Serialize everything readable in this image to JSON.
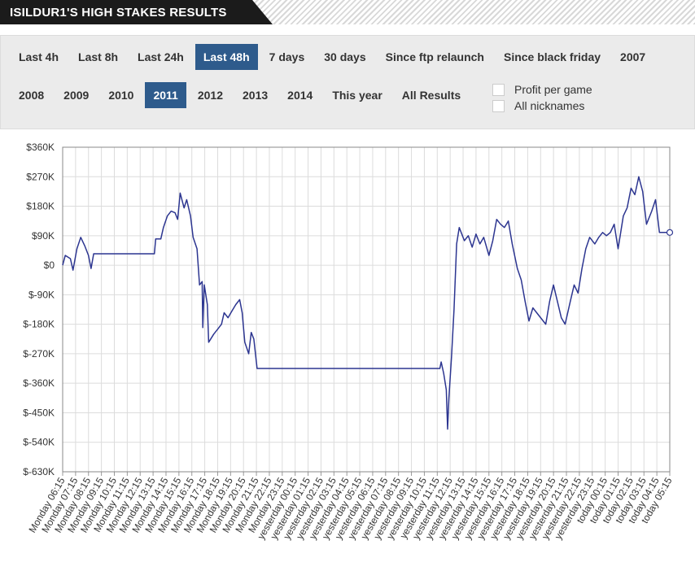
{
  "header": {
    "title": "ISILDUR1'S HIGH STAKES RESULTS"
  },
  "filter_rows": [
    [
      {
        "label": "Last 4h",
        "active": false
      },
      {
        "label": "Last 8h",
        "active": false
      },
      {
        "label": "Last 24h",
        "active": false
      },
      {
        "label": "Last 48h",
        "active": true
      },
      {
        "label": "7 days",
        "active": false
      },
      {
        "label": "30 days",
        "active": false
      },
      {
        "label": "Since ftp relaunch",
        "active": false
      },
      {
        "label": "Since black friday",
        "active": false
      },
      {
        "label": "2007",
        "active": false
      }
    ],
    [
      {
        "label": "2008",
        "active": false
      },
      {
        "label": "2009",
        "active": false
      },
      {
        "label": "2010",
        "active": false
      },
      {
        "label": "2011",
        "active": true
      },
      {
        "label": "2012",
        "active": false
      },
      {
        "label": "2013",
        "active": false
      },
      {
        "label": "2014",
        "active": false
      },
      {
        "label": "This year",
        "active": false
      },
      {
        "label": "All Results",
        "active": false
      }
    ]
  ],
  "options": [
    {
      "label": "Profit per game",
      "checked": false
    },
    {
      "label": "All nicknames",
      "checked": false
    }
  ],
  "chart_data": {
    "type": "line",
    "color": "#2c3590",
    "grid": true,
    "xlim": [
      0,
      47
    ],
    "xticks": [
      {
        "value": 0,
        "label": "Monday 06:15"
      },
      {
        "value": 1,
        "label": "Monday 07:15"
      },
      {
        "value": 2,
        "label": "Monday 08:15"
      },
      {
        "value": 3,
        "label": "Monday 09:15"
      },
      {
        "value": 4,
        "label": "Monday 10:15"
      },
      {
        "value": 5,
        "label": "Monday 11:15"
      },
      {
        "value": 6,
        "label": "Monday 12:15"
      },
      {
        "value": 7,
        "label": "Monday 13:15"
      },
      {
        "value": 8,
        "label": "Monday 14:15"
      },
      {
        "value": 9,
        "label": "Monday 15:15"
      },
      {
        "value": 10,
        "label": "Monday 16:15"
      },
      {
        "value": 11,
        "label": "Monday 17:15"
      },
      {
        "value": 12,
        "label": "Monday 18:15"
      },
      {
        "value": 13,
        "label": "Monday 19:15"
      },
      {
        "value": 14,
        "label": "Monday 20:15"
      },
      {
        "value": 15,
        "label": "Monday 21:15"
      },
      {
        "value": 16,
        "label": "Monday 22:15"
      },
      {
        "value": 17,
        "label": "Monday 23:15"
      },
      {
        "value": 18,
        "label": "yesterday 00:15"
      },
      {
        "value": 19,
        "label": "yesterday 01:15"
      },
      {
        "value": 20,
        "label": "yesterday 02:15"
      },
      {
        "value": 21,
        "label": "yesterday 03:15"
      },
      {
        "value": 22,
        "label": "yesterday 04:15"
      },
      {
        "value": 23,
        "label": "yesterday 05:15"
      },
      {
        "value": 24,
        "label": "yesterday 06:15"
      },
      {
        "value": 25,
        "label": "yesterday 07:15"
      },
      {
        "value": 26,
        "label": "yesterday 08:15"
      },
      {
        "value": 27,
        "label": "yesterday 09:15"
      },
      {
        "value": 28,
        "label": "yesterday 10:15"
      },
      {
        "value": 29,
        "label": "yesterday 11:15"
      },
      {
        "value": 30,
        "label": "yesterday 12:15"
      },
      {
        "value": 31,
        "label": "yesterday 13:15"
      },
      {
        "value": 32,
        "label": "yesterday 14:15"
      },
      {
        "value": 33,
        "label": "yesterday 15:15"
      },
      {
        "value": 34,
        "label": "yesterday 16:15"
      },
      {
        "value": 35,
        "label": "yesterday 17:15"
      },
      {
        "value": 36,
        "label": "yesterday 18:15"
      },
      {
        "value": 37,
        "label": "yesterday 19:15"
      },
      {
        "value": 38,
        "label": "yesterday 20:15"
      },
      {
        "value": 39,
        "label": "yesterday 21:15"
      },
      {
        "value": 40,
        "label": "yesterday 22:15"
      },
      {
        "value": 41,
        "label": "yesterday 23:15"
      },
      {
        "value": 42,
        "label": "today 00:15"
      },
      {
        "value": 43,
        "label": "today 01:15"
      },
      {
        "value": 44,
        "label": "today 02:15"
      },
      {
        "value": 45,
        "label": "today 03:15"
      },
      {
        "value": 46,
        "label": "today 04:15"
      },
      {
        "value": 47,
        "label": "today 05:15"
      }
    ],
    "ylim": [
      -630,
      360
    ],
    "yticks": [
      {
        "value": 360,
        "label": "$360K"
      },
      {
        "value": 270,
        "label": "$270K"
      },
      {
        "value": 180,
        "label": "$180K"
      },
      {
        "value": 90,
        "label": "$90K"
      },
      {
        "value": 0,
        "label": "$0"
      },
      {
        "value": -90,
        "label": "$-90K"
      },
      {
        "value": -180,
        "label": "$-180K"
      },
      {
        "value": -270,
        "label": "$-270K"
      },
      {
        "value": -360,
        "label": "$-360K"
      },
      {
        "value": -450,
        "label": "$-450K"
      },
      {
        "value": -540,
        "label": "$-540K"
      },
      {
        "value": -630,
        "label": "$-630K"
      }
    ],
    "x": [
      0,
      0.2,
      0.6,
      0.8,
      1.1,
      1.4,
      1.7,
      2.0,
      2.2,
      2.4,
      7.1,
      7.2,
      7.6,
      7.8,
      8.1,
      8.4,
      8.7,
      8.9,
      9.1,
      9.4,
      9.6,
      9.9,
      10.1,
      10.4,
      10.6,
      10.8,
      10.85,
      10.96,
      11.2,
      11.3,
      11.7,
      12.0,
      12.3,
      12.5,
      12.8,
      13.1,
      13.4,
      13.7,
      13.9,
      14.1,
      14.4,
      14.6,
      14.8,
      15.05,
      29.2,
      29.3,
      29.5,
      29.7,
      29.8,
      29.9,
      30.1,
      30.3,
      30.5,
      30.7,
      31.1,
      31.4,
      31.7,
      32.0,
      32.3,
      32.6,
      33.0,
      33.3,
      33.6,
      33.9,
      34.2,
      34.5,
      34.8,
      35.2,
      35.5,
      35.8,
      36.1,
      36.4,
      36.7,
      37.1,
      37.4,
      37.7,
      38.0,
      38.3,
      38.6,
      38.9,
      39.3,
      39.6,
      39.9,
      40.2,
      40.5,
      40.8,
      41.2,
      41.5,
      41.8,
      42.1,
      42.4,
      42.7,
      43.0,
      43.4,
      43.7,
      44.0,
      44.3,
      44.6,
      44.9,
      45.2,
      45.6,
      45.9,
      46.2,
      46.5,
      47
    ],
    "values": [
      0,
      30,
      20,
      -15,
      50,
      85,
      60,
      30,
      -10,
      35,
      35,
      80,
      80,
      115,
      150,
      165,
      160,
      140,
      220,
      175,
      200,
      150,
      85,
      50,
      -60,
      -50,
      -190,
      -60,
      -120,
      -235,
      -210,
      -195,
      -180,
      -145,
      -160,
      -140,
      -120,
      -105,
      -145,
      -235,
      -270,
      -205,
      -225,
      -315,
      -315,
      -295,
      -330,
      -380,
      -500,
      -405,
      -280,
      -135,
      65,
      115,
      75,
      90,
      55,
      95,
      65,
      85,
      30,
      75,
      140,
      125,
      115,
      135,
      65,
      -10,
      -45,
      -110,
      -170,
      -130,
      -145,
      -165,
      -180,
      -110,
      -60,
      -110,
      -160,
      -180,
      -110,
      -60,
      -85,
      -10,
      50,
      85,
      65,
      85,
      100,
      90,
      100,
      125,
      50,
      150,
      175,
      235,
      215,
      270,
      225,
      125,
      165,
      200,
      100,
      100,
      100
    ]
  }
}
